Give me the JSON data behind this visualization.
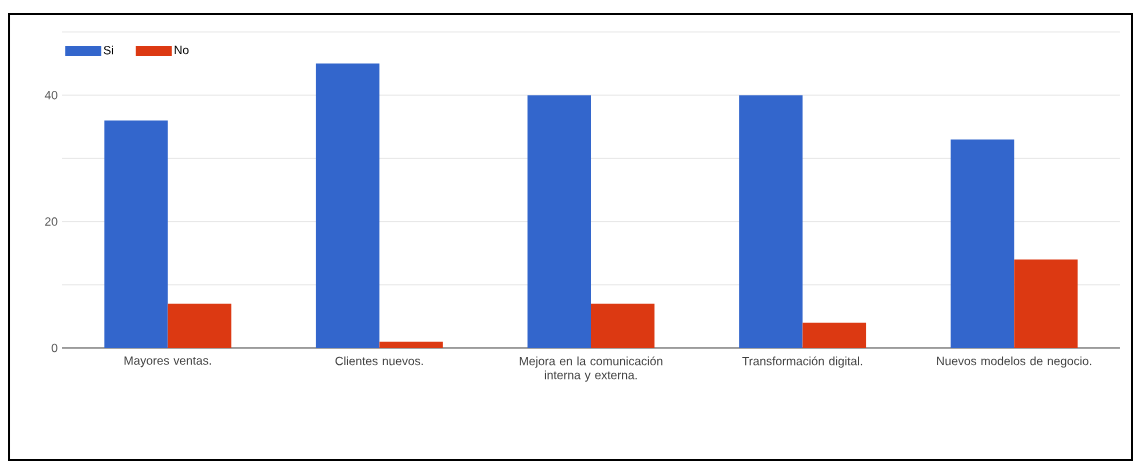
{
  "chart_data": {
    "type": "bar",
    "categories": [
      "Mayores ventas.",
      "Clientes nuevos.",
      "Mejora en la comunicación interna y externa.",
      "Transformación digital.",
      "Nuevos modelos de negocio."
    ],
    "series": [
      {
        "name": "Si",
        "color": "#3366cc",
        "values": [
          36,
          45,
          40,
          40,
          33
        ]
      },
      {
        "name": "No",
        "color": "#dc3912",
        "values": [
          7,
          1,
          7,
          4,
          14
        ]
      }
    ],
    "ylim": [
      0,
      50
    ],
    "yticks": [
      0,
      {
        "value": 10,
        "label": null
      },
      20,
      {
        "value": 30,
        "label": null
      },
      40,
      {
        "value": 50,
        "label": null
      }
    ],
    "grid": "y",
    "legend": "top left"
  }
}
